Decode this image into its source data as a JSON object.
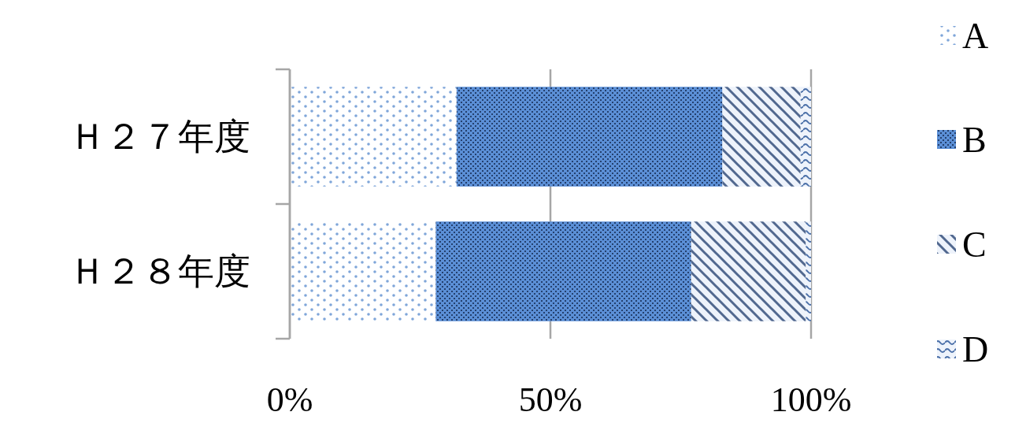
{
  "chart_data": {
    "type": "bar",
    "orientation": "horizontal",
    "stacked": true,
    "categories": [
      "Ｈ２７年度",
      "Ｈ２８年度"
    ],
    "series": [
      {
        "name": "A",
        "color": "#7fa6d9",
        "values": [
          32,
          28
        ]
      },
      {
        "name": "B",
        "color": "#5b8fd6",
        "values": [
          51,
          49
        ]
      },
      {
        "name": "C",
        "color": "#51688f",
        "values": [
          15,
          22
        ]
      },
      {
        "name": "D",
        "color": "#4a6fa8",
        "values": [
          2,
          1
        ]
      }
    ],
    "xlim": [
      0,
      100
    ],
    "xticks": [
      {
        "value": 0,
        "label": "0%"
      },
      {
        "value": 50,
        "label": "50%"
      },
      {
        "value": 100,
        "label": "100%"
      }
    ],
    "grid": "x",
    "legend": "right"
  }
}
